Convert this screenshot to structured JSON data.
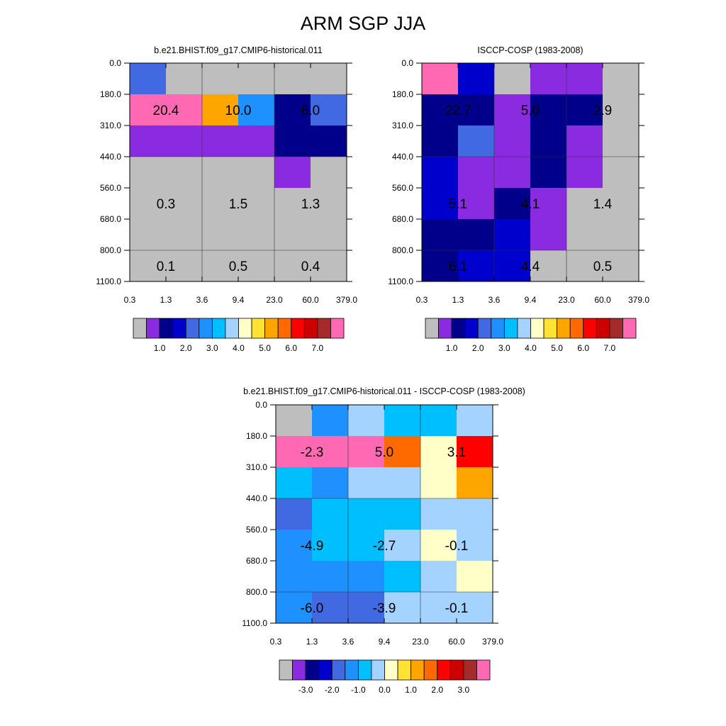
{
  "page": {
    "title": "ARM SGP JJA"
  },
  "x_ticks": [
    "0.3",
    "1.3",
    "3.6",
    "9.4",
    "23.0",
    "60.0",
    "379.0"
  ],
  "y_ticks": [
    "0.0",
    "180.0",
    "310.0",
    "440.0",
    "560.0",
    "680.0",
    "800.0",
    "1100.0"
  ],
  "abs_colorbar": {
    "colors": [
      "#bebebe",
      "#8a2be2",
      "#00008b",
      "#0000cd",
      "#4169e1",
      "#1e90ff",
      "#00bfff",
      "#a4d3ff",
      "#ffffc8",
      "#ffe234",
      "#ffa500",
      "#ff6a00",
      "#ff0000",
      "#cd0000",
      "#a52a2a",
      "#ff69b4"
    ],
    "labels": [
      "1.0",
      "2.0",
      "3.0",
      "4.0",
      "5.0",
      "6.0",
      "7.0"
    ]
  },
  "diff_colorbar": {
    "colors": [
      "#bebebe",
      "#8a2be2",
      "#00008b",
      "#0000cd",
      "#4169e1",
      "#1e90ff",
      "#00bfff",
      "#a4d3ff",
      "#ffffc8",
      "#ffe234",
      "#ffa500",
      "#ff6a00",
      "#ff0000",
      "#cd0000",
      "#a52a2a",
      "#ff69b4"
    ],
    "labels": [
      "-3.0",
      "-2.0",
      "-1.0",
      "0.0",
      "1.0",
      "2.0",
      "3.0"
    ]
  },
  "chart_data": [
    {
      "type": "heatmap",
      "title": "b.e21.BHIST.f09_g17.CMIP6-historical.011",
      "cells": [
        [
          "#4169e1",
          "#bebebe",
          "#bebebe",
          "#bebebe",
          "#bebebe",
          "#bebebe"
        ],
        [
          "#ff69b4",
          "#ff69b4",
          "#ffa500",
          "#1e90ff",
          "#00008b",
          "#4169e1"
        ],
        [
          "#8a2be2",
          "#8a2be2",
          "#8a2be2",
          "#8a2be2",
          "#00008b",
          "#00008b"
        ],
        [
          "#bebebe",
          "#bebebe",
          "#bebebe",
          "#bebebe",
          "#8a2be2",
          "#bebebe"
        ],
        [
          "#bebebe",
          "#bebebe",
          "#bebebe",
          "#bebebe",
          "#bebebe",
          "#bebebe"
        ],
        [
          "#bebebe",
          "#bebebe",
          "#bebebe",
          "#bebebe",
          "#bebebe",
          "#bebebe"
        ],
        [
          "#bebebe",
          "#bebebe",
          "#bebebe",
          "#bebebe",
          "#bebebe",
          "#bebebe"
        ]
      ],
      "annotations": [
        {
          "text": "20.4",
          "col": 0,
          "row": 1
        },
        {
          "text": "10.0",
          "col": 2,
          "row": 1
        },
        {
          "text": "6.0",
          "col": 4,
          "row": 1
        },
        {
          "text": "0.3",
          "col": 0,
          "row": 4
        },
        {
          "text": "1.5",
          "col": 2,
          "row": 4
        },
        {
          "text": "1.3",
          "col": 4,
          "row": 4
        },
        {
          "text": "0.1",
          "col": 0,
          "row": 6
        },
        {
          "text": "0.5",
          "col": 2,
          "row": 6
        },
        {
          "text": "0.4",
          "col": 4,
          "row": 6
        }
      ]
    },
    {
      "type": "heatmap",
      "title": "ISCCP-COSP (1983-2008)",
      "cells": [
        [
          "#ff69b4",
          "#0000cd",
          "#bebebe",
          "#8a2be2",
          "#8a2be2",
          "#bebebe"
        ],
        [
          "#00008b",
          "#00008b",
          "#8a2be2",
          "#00008b",
          "#00008b",
          "#bebebe"
        ],
        [
          "#00008b",
          "#4169e1",
          "#8a2be2",
          "#00008b",
          "#8a2be2",
          "#bebebe"
        ],
        [
          "#0000cd",
          "#8a2be2",
          "#8a2be2",
          "#00008b",
          "#8a2be2",
          "#bebebe"
        ],
        [
          "#0000cd",
          "#8a2be2",
          "#00008b",
          "#8a2be2",
          "#bebebe",
          "#bebebe"
        ],
        [
          "#00008b",
          "#00008b",
          "#0000cd",
          "#8a2be2",
          "#bebebe",
          "#bebebe"
        ],
        [
          "#00008b",
          "#0000cd",
          "#0000cd",
          "#bebebe",
          "#bebebe",
          "#bebebe"
        ]
      ],
      "annotations": [
        {
          "text": "22.7",
          "col": 0,
          "row": 1
        },
        {
          "text": "5.0",
          "col": 2,
          "row": 1
        },
        {
          "text": "2.9",
          "col": 4,
          "row": 1
        },
        {
          "text": "5.1",
          "col": 0,
          "row": 4
        },
        {
          "text": "4.1",
          "col": 2,
          "row": 4
        },
        {
          "text": "1.4",
          "col": 4,
          "row": 4
        },
        {
          "text": "6.1",
          "col": 0,
          "row": 6
        },
        {
          "text": "4.4",
          "col": 2,
          "row": 6
        },
        {
          "text": "0.5",
          "col": 4,
          "row": 6
        }
      ]
    },
    {
      "type": "heatmap",
      "title": "b.e21.BHIST.f09_g17.CMIP6-historical.011 - ISCCP-COSP (1983-2008)",
      "cells": [
        [
          "#bebebe",
          "#1e90ff",
          "#a4d3ff",
          "#00bfff",
          "#00bfff",
          "#a4d3ff"
        ],
        [
          "#ff69b4",
          "#ff69b4",
          "#ff69b4",
          "#ff6a00",
          "#ffffc8",
          "#ff0000"
        ],
        [
          "#00bfff",
          "#1e90ff",
          "#a4d3ff",
          "#a4d3ff",
          "#ffffc8",
          "#ffa500"
        ],
        [
          "#4169e1",
          "#00bfff",
          "#00bfff",
          "#00bfff",
          "#a4d3ff",
          "#a4d3ff"
        ],
        [
          "#1e90ff",
          "#00bfff",
          "#00bfff",
          "#a4d3ff",
          "#ffffc8",
          "#a4d3ff"
        ],
        [
          "#1e90ff",
          "#1e90ff",
          "#1e90ff",
          "#00bfff",
          "#a4d3ff",
          "#ffffc8"
        ],
        [
          "#1e90ff",
          "#4169e1",
          "#4169e1",
          "#a4d3ff",
          "#a4d3ff",
          "#a4d3ff"
        ]
      ],
      "annotations": [
        {
          "text": "-2.3",
          "col": 0,
          "row": 1
        },
        {
          "text": "5.0",
          "col": 2,
          "row": 1
        },
        {
          "text": "3.1",
          "col": 4,
          "row": 1
        },
        {
          "text": "-4.9",
          "col": 0,
          "row": 4
        },
        {
          "text": "-2.7",
          "col": 2,
          "row": 4
        },
        {
          "text": "-0.1",
          "col": 4,
          "row": 4
        },
        {
          "text": "-6.0",
          "col": 0,
          "row": 6
        },
        {
          "text": "-3.9",
          "col": 2,
          "row": 6
        },
        {
          "text": "-0.1",
          "col": 4,
          "row": 6
        }
      ]
    }
  ]
}
